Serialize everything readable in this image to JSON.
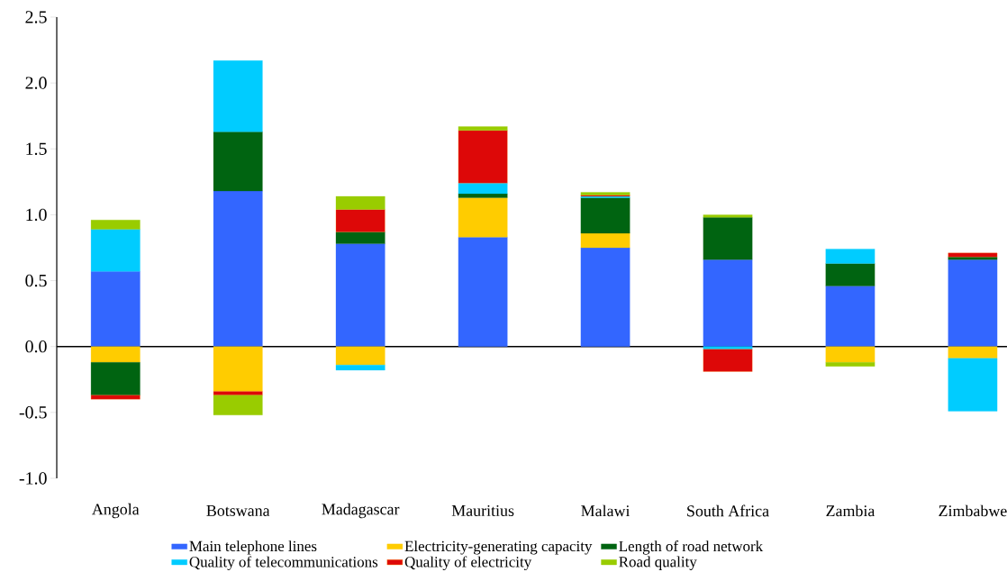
{
  "chart_data": {
    "type": "bar",
    "stacked": true,
    "legend": "bottom",
    "categories": [
      "Angola",
      "Botswana",
      "Madagascar",
      "Mauritius",
      "Malawi",
      "South Africa",
      "Zambia",
      "Zimbabwe"
    ],
    "ylim": [
      -1.0,
      2.5
    ],
    "yticks": [
      {
        "value": -1.0,
        "label": "-1.0"
      },
      {
        "value": -0.5,
        "label": "-0.5"
      },
      {
        "value": 0,
        "label": "0.0"
      },
      {
        "value": 0.5,
        "label": "0.5"
      },
      {
        "value": 1.0,
        "label": "1.0"
      },
      {
        "value": 1.5,
        "label": "1.5"
      },
      {
        "value": 2.0,
        "label": "2.0"
      },
      2.5
    ],
    "series": [
      {
        "name": "Main telephone lines",
        "color": "#3366ff",
        "values": [
          0.57,
          1.18,
          0.78,
          0.83,
          0.75,
          0.66,
          0.46,
          0.66
        ]
      },
      {
        "name": "Electricity-generating capacity",
        "color": "#ffcc00",
        "values": [
          -0.12,
          -0.34,
          -0.14,
          0.3,
          0.11,
          null,
          -0.12,
          -0.09
        ]
      },
      {
        "name": "Length of road network",
        "color": "#006411",
        "values": [
          -0.25,
          0.45,
          0.09,
          0.03,
          0.27,
          0.32,
          0.17,
          0.02
        ]
      },
      {
        "name": "Quality of telecommunications",
        "color": "#00ccff",
        "values": [
          0.32,
          0.54,
          -0.04,
          0.08,
          0.01,
          -0.02,
          0.11,
          -0.4
        ]
      },
      {
        "name": "Quality of electricity",
        "color": "#dd0808",
        "values": [
          -0.03,
          -0.03,
          0.17,
          0.4,
          0.01,
          -0.17,
          null,
          0.03
        ]
      },
      {
        "name": "Road quality",
        "color": "#99cc00",
        "values": [
          0.07,
          -0.15,
          0.1,
          0.03,
          0.02,
          0.02,
          -0.03,
          null
        ]
      }
    ]
  }
}
